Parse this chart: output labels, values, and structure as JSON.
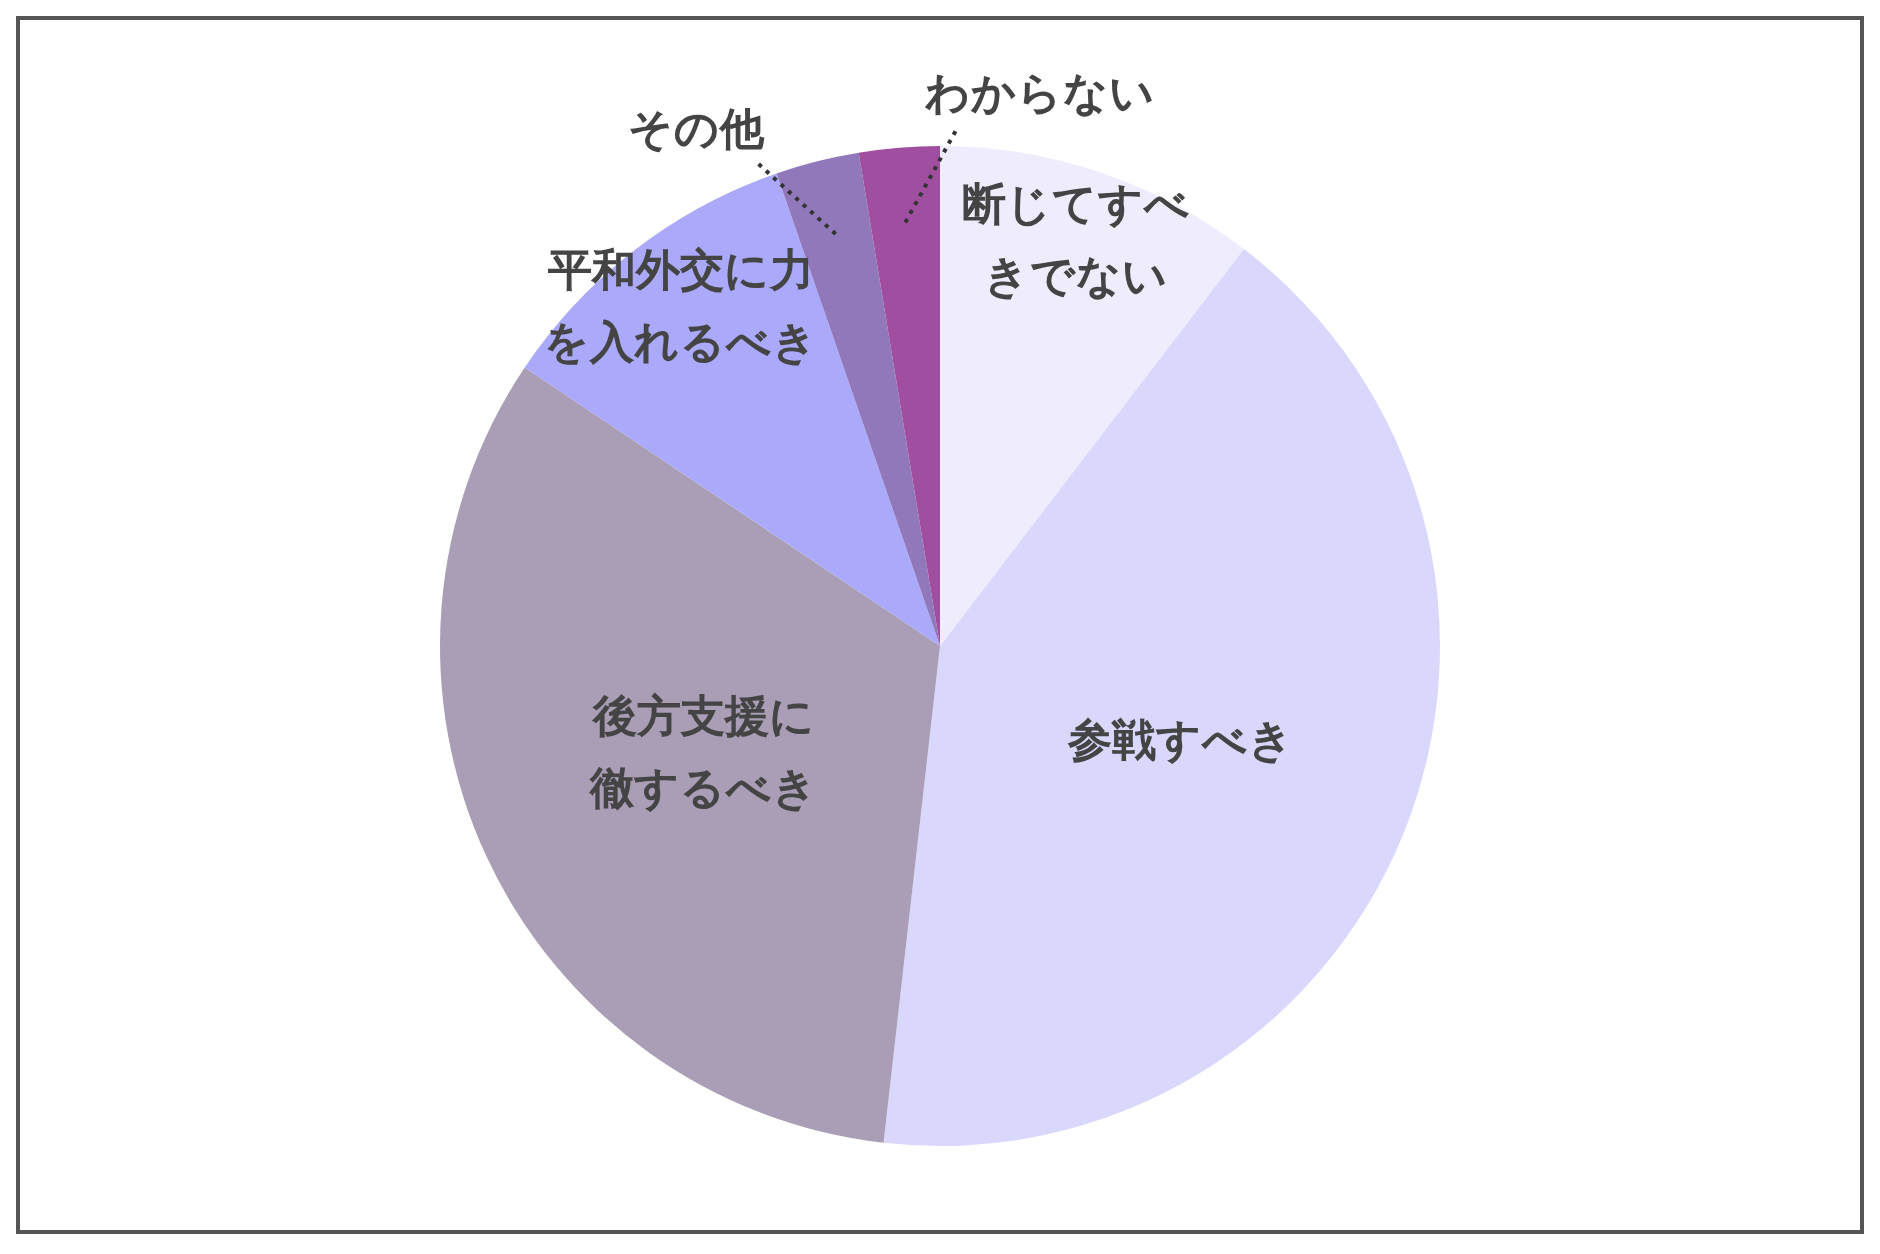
{
  "chart_data": {
    "type": "pie",
    "categories": [
      "断じてすべきでない",
      "参戦すべき",
      "後方支援に徹するべき",
      "平和外交に力を入れるべき",
      "その他",
      "わからない"
    ],
    "values": [
      10.4,
      41.4,
      32.6,
      10.3,
      2.7,
      2.6
    ],
    "colors": [
      "#eeecfd",
      "#d9d8fc",
      "#a99eb5",
      "#aaa9fa",
      "#9178bb",
      "#a04e9f"
    ],
    "legend": false
  }
}
